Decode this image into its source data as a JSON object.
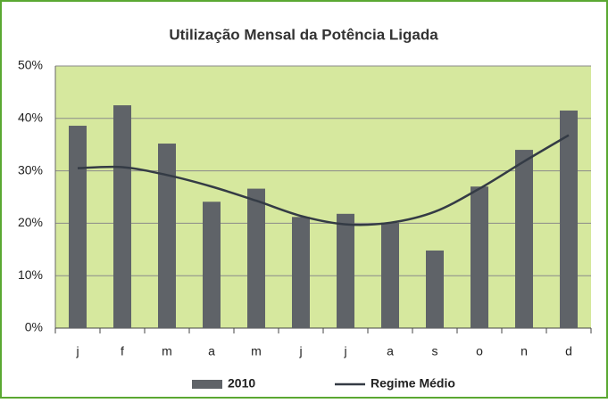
{
  "chart_data": {
    "type": "bar",
    "title": "Utilização Mensal da Potência Ligada",
    "categories": [
      "j",
      "f",
      "m",
      "a",
      "m",
      "j",
      "j",
      "a",
      "s",
      "o",
      "n",
      "d"
    ],
    "series": [
      {
        "name": "2010",
        "type": "bar",
        "color": "#5f6368",
        "values": [
          38.6,
          42.5,
          35.2,
          24.1,
          26.6,
          21.2,
          21.8,
          20.1,
          14.8,
          27.0,
          34.0,
          41.5
        ]
      },
      {
        "name": "Regime Médio",
        "type": "line",
        "color": "#343b45",
        "values": [
          30.5,
          30.7,
          29.2,
          27.0,
          24.3,
          21.4,
          19.8,
          20.1,
          22.2,
          26.6,
          31.8,
          36.8
        ]
      }
    ],
    "ylim": [
      0,
      50
    ],
    "yticks": [
      {
        "value": 0,
        "label": "0%"
      },
      {
        "value": 10,
        "label": "10%"
      },
      {
        "value": 20,
        "label": "20%"
      },
      {
        "value": 30,
        "label": "30%"
      },
      {
        "value": 40,
        "label": "40%"
      },
      {
        "value": 50,
        "label": "50%"
      }
    ],
    "grid": true,
    "legend": "bottom"
  }
}
